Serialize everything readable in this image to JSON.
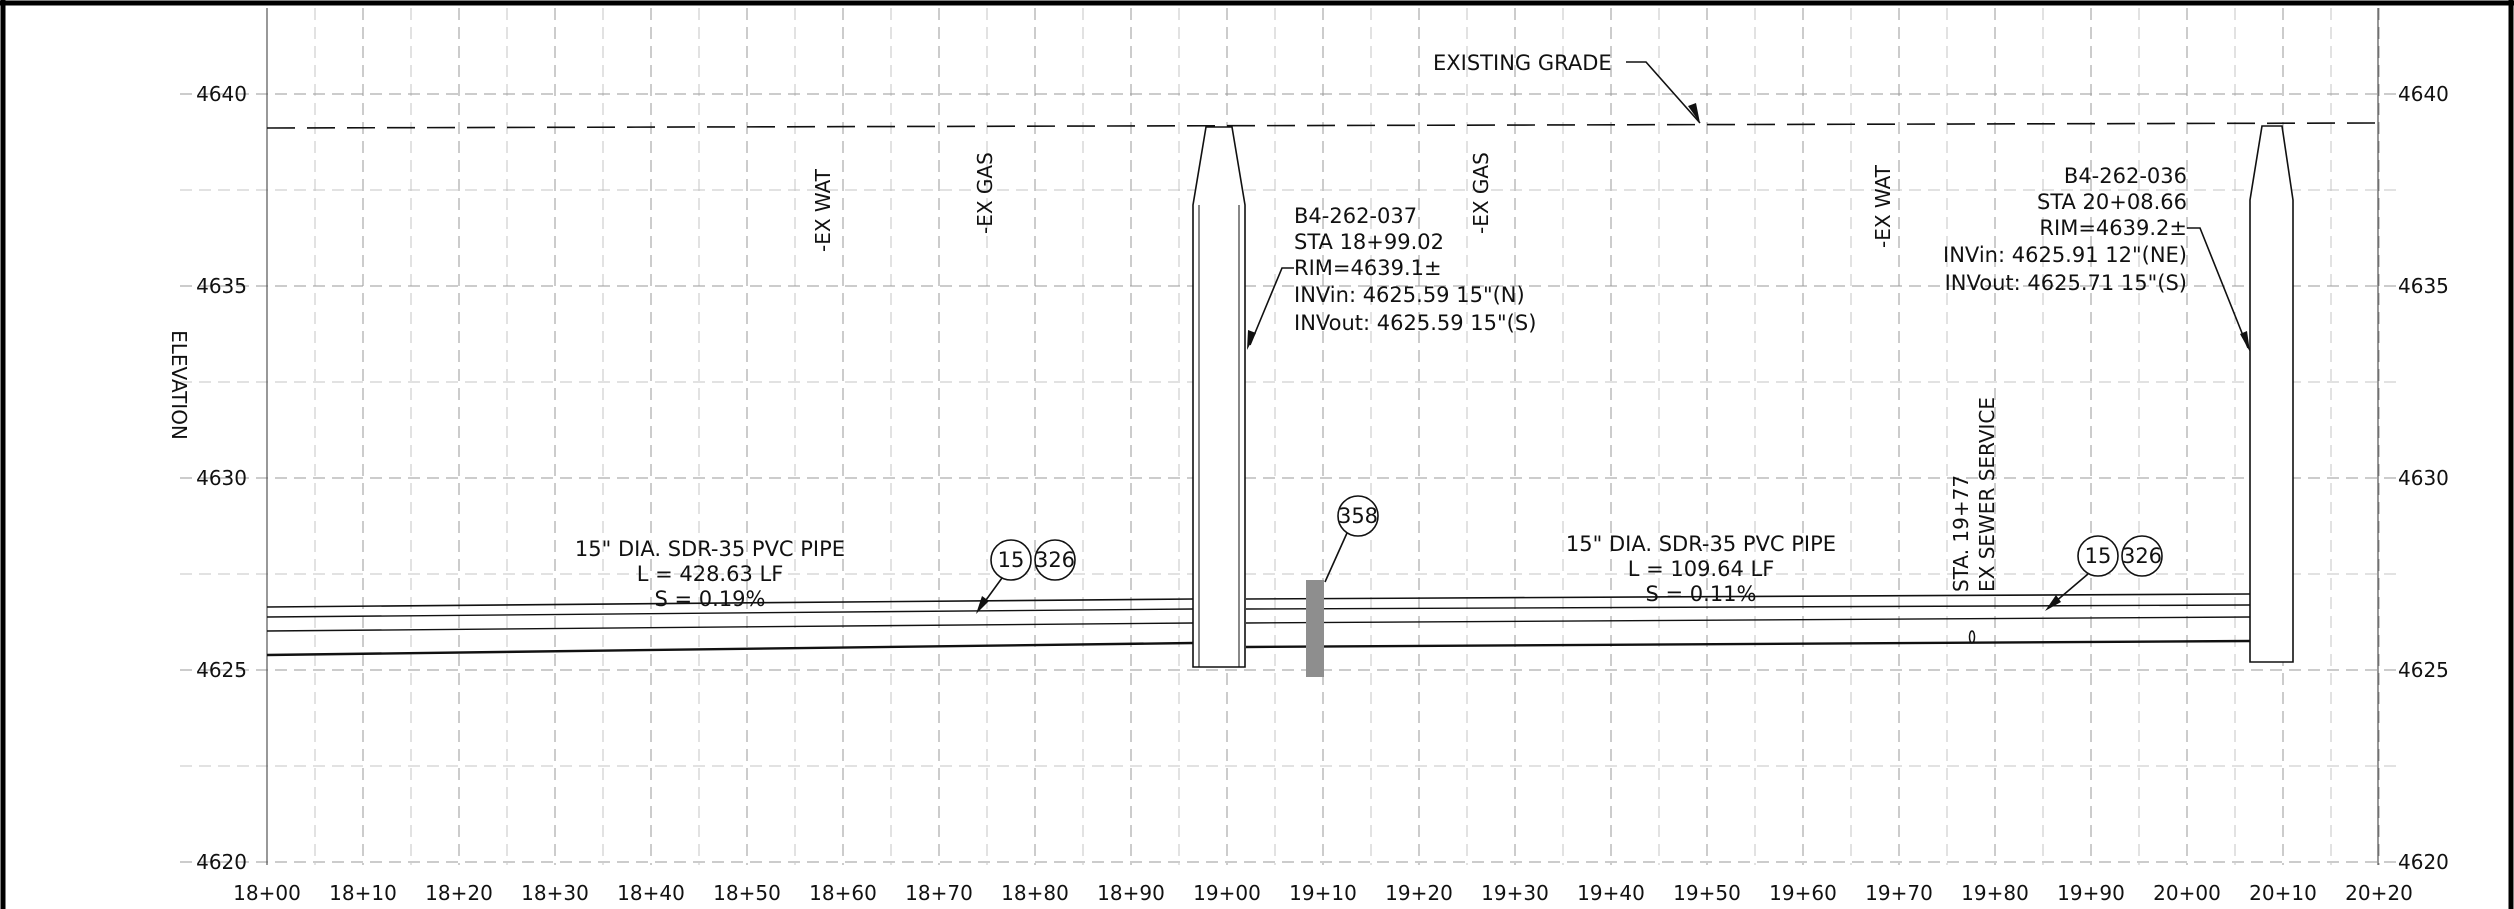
{
  "left_axis_label": "ELEVATION",
  "elevations": [
    4620,
    4625,
    4630,
    4635,
    4640
  ],
  "stations": [
    "18+00",
    "18+10",
    "18+20",
    "18+30",
    "18+40",
    "18+50",
    "18+60",
    "18+70",
    "18+80",
    "18+90",
    "19+00",
    "19+10",
    "19+20",
    "19+30",
    "19+40",
    "19+50",
    "19+60",
    "19+70",
    "19+80",
    "19+90",
    "20+00",
    "20+10",
    "20+20"
  ],
  "existing_grade_label": "EXISTING GRADE",
  "utility_labels": [
    "-EX WAT",
    "-EX GAS",
    "-EX GAS",
    "-EX WAT"
  ],
  "sewer_service": {
    "line1": "STA. 19+77",
    "line2": "EX SEWER SERVICE"
  },
  "manhole_1": {
    "id": "B4-262-037",
    "sta": "STA 18+99.02",
    "rim": "RIM=4639.1±",
    "inv_in": "INVin: 4625.59 15\"(N)",
    "inv_out": "INVout: 4625.59 15\"(S)"
  },
  "manhole_2": {
    "id": "B4-262-036",
    "sta": "STA 20+08.66",
    "rim": "RIM=4639.2±",
    "inv_in": "INVin: 4625.91 12\"(NE)",
    "inv_out": "INVout: 4625.71 15\"(S)"
  },
  "pipe_1": {
    "desc": "15\" DIA. SDR-35 PVC PIPE",
    "length": "L = 428.63 LF",
    "slope": "S = 0.19%"
  },
  "pipe_2": {
    "desc": "15\" DIA. SDR-35 PVC PIPE",
    "length": "L = 109.64 LF",
    "slope": "S = 0.11%"
  },
  "keynotes": {
    "pipe_1": [
      "15",
      "326"
    ],
    "crossing": "358",
    "pipe_2": [
      "15",
      "326"
    ]
  }
}
